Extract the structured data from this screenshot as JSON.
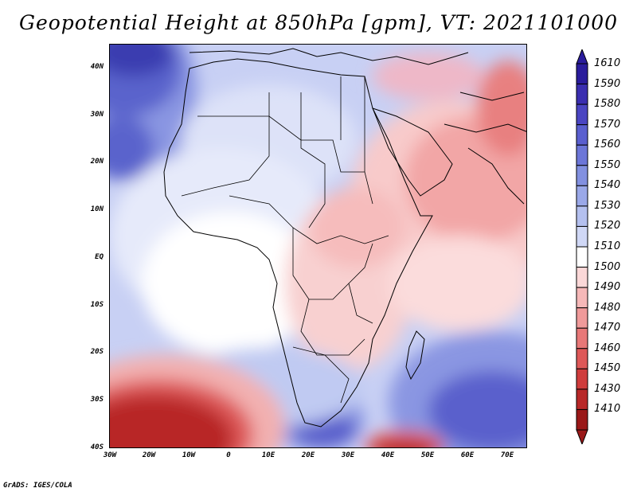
{
  "title": "Geopotential Height at 850hPa [gpm], VT: 2021101000",
  "lat_labels": [
    "40N",
    "30N",
    "20N",
    "10N",
    "EQ",
    "10S",
    "20S",
    "30S",
    "40S"
  ],
  "lon_labels": [
    "30W",
    "20W",
    "10W",
    "0",
    "10E",
    "20E",
    "30E",
    "40E",
    "50E",
    "60E",
    "70E"
  ],
  "colorbar": {
    "levels": [
      "1610",
      "1590",
      "1580",
      "1570",
      "1560",
      "1550",
      "1540",
      "1530",
      "1520",
      "1510",
      "1500",
      "1490",
      "1480",
      "1470",
      "1460",
      "1450",
      "1430",
      "1410"
    ],
    "colors": [
      "#2a1c9c",
      "#3a2eb0",
      "#4a45c2",
      "#5a5fcf",
      "#6c76d8",
      "#8290e0",
      "#9aa8e8",
      "#b4c0ef",
      "#d0d8f6",
      "#ffffff",
      "#fbd8d8",
      "#f6b8b8",
      "#f09a9a",
      "#e87878",
      "#de5858",
      "#cf3c3c",
      "#b82828",
      "#9a1818"
    ]
  },
  "credit": "GrADS: IGES/COLA"
}
